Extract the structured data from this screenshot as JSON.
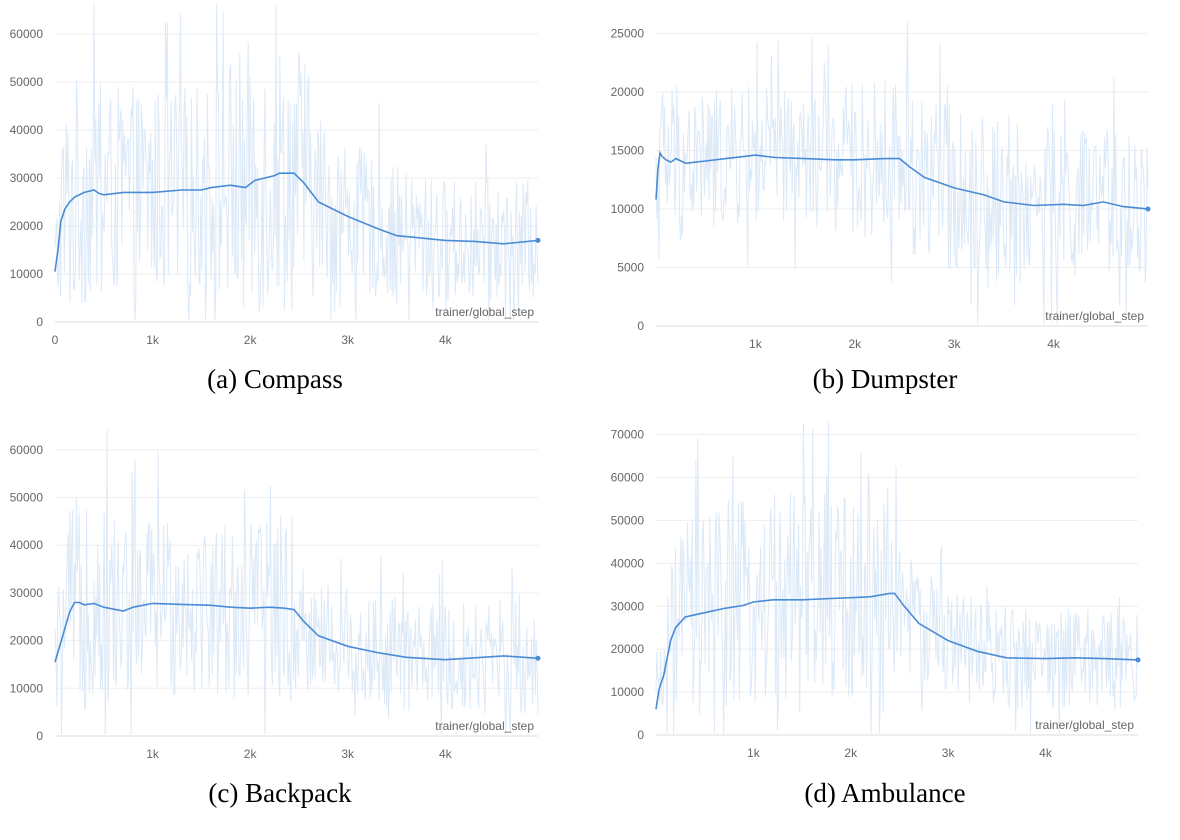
{
  "chart_data": [
    {
      "type": "line",
      "caption": "(a) Compass",
      "xlabel": "trainer/global_step",
      "ylabel": "",
      "xlim": [
        0,
        4950
      ],
      "ylim": [
        0,
        65000
      ],
      "yticks": [
        0,
        10000,
        20000,
        30000,
        40000,
        50000,
        60000
      ],
      "ytick_labels": [
        "0",
        "10000",
        "20000",
        "30000",
        "40000",
        "50000",
        "60000"
      ],
      "xticks": [
        0,
        1000,
        2000,
        3000,
        4000
      ],
      "xtick_labels": [
        "0",
        "1k",
        "2k",
        "3k",
        "4k"
      ],
      "colors": {
        "smoothed": "#4a8bd6",
        "raw": "#dce9f7",
        "grid": "#eeeeee"
      },
      "series": [
        {
          "name": "smoothed",
          "x": [
            0,
            30,
            60,
            100,
            150,
            200,
            300,
            400,
            450,
            500,
            700,
            1000,
            1300,
            1500,
            1600,
            1800,
            1950,
            2050,
            2250,
            2300,
            2450,
            2550,
            2700,
            3000,
            3300,
            3500,
            4000,
            4300,
            4600,
            4950
          ],
          "y": [
            10500,
            15000,
            21000,
            23500,
            25000,
            26000,
            27000,
            27500,
            26800,
            26500,
            27000,
            27000,
            27500,
            27500,
            28000,
            28500,
            28000,
            29500,
            30500,
            31000,
            31000,
            29000,
            25000,
            22000,
            19500,
            18000,
            17000,
            16800,
            16300,
            17000
          ]
        },
        {
          "name": "raw",
          "spread": [
            [
              0,
              12000
            ],
            [
              150,
              26000
            ],
            [
              500,
              22000
            ],
            [
              1500,
              22000
            ],
            [
              1950,
              30000
            ],
            [
              2250,
              28000
            ],
            [
              2500,
              30000
            ],
            [
              2700,
              18000
            ],
            [
              3200,
              15000
            ],
            [
              4000,
              13000
            ],
            [
              4950,
              13000
            ]
          ]
        }
      ]
    },
    {
      "type": "line",
      "caption": "(b) Dumpster",
      "xlabel": "trainer/global_step",
      "ylabel": "",
      "xlim": [
        0,
        4950
      ],
      "ylim": [
        0,
        27000
      ],
      "yticks": [
        0,
        5000,
        10000,
        15000,
        20000,
        25000
      ],
      "ytick_labels": [
        "0",
        "5000",
        "10000",
        "15000",
        "20000",
        "25000"
      ],
      "xticks": [
        1000,
        2000,
        3000,
        4000
      ],
      "xtick_labels": [
        "1k",
        "2k",
        "3k",
        "4k"
      ],
      "colors": {
        "smoothed": "#4a8bd6",
        "raw": "#dce9f7",
        "grid": "#eeeeee"
      },
      "series": [
        {
          "name": "smoothed",
          "x": [
            0,
            20,
            40,
            60,
            100,
            150,
            200,
            300,
            400,
            500,
            700,
            900,
            1000,
            1200,
            1500,
            1800,
            2000,
            2300,
            2450,
            2550,
            2700,
            3000,
            3300,
            3500,
            3800,
            4100,
            4300,
            4500,
            4700,
            4950
          ],
          "y": [
            10800,
            13500,
            14800,
            14500,
            14200,
            14000,
            14300,
            13900,
            14000,
            14100,
            14300,
            14500,
            14600,
            14400,
            14300,
            14200,
            14200,
            14300,
            14300,
            13600,
            12700,
            11800,
            11200,
            10600,
            10300,
            10400,
            10300,
            10600,
            10200,
            10000
          ]
        },
        {
          "name": "raw",
          "spread": [
            [
              0,
              4000
            ],
            [
              100,
              8000
            ],
            [
              500,
              6000
            ],
            [
              1500,
              6000
            ],
            [
              2400,
              7000
            ],
            [
              2600,
              8000
            ],
            [
              3000,
              7000
            ],
            [
              4000,
              7000
            ],
            [
              4950,
              6000
            ]
          ]
        }
      ]
    },
    {
      "type": "line",
      "caption": "(c) Backpack",
      "xlabel": "trainer/global_step",
      "ylabel": "",
      "xlim": [
        0,
        4950
      ],
      "ylim": [
        0,
        65000
      ],
      "yticks": [
        0,
        10000,
        20000,
        30000,
        40000,
        50000,
        60000
      ],
      "ytick_labels": [
        "0",
        "10000",
        "20000",
        "30000",
        "40000",
        "50000",
        "60000"
      ],
      "xticks": [
        1000,
        2000,
        3000,
        4000
      ],
      "xtick_labels": [
        "1k",
        "2k",
        "3k",
        "4k"
      ],
      "colors": {
        "smoothed": "#4a8bd6",
        "raw": "#dce9f7",
        "grid": "#eeeeee"
      },
      "series": [
        {
          "name": "smoothed",
          "x": [
            0,
            50,
            100,
            150,
            200,
            250,
            300,
            400,
            500,
            700,
            800,
            1000,
            1300,
            1600,
            1800,
            2000,
            2200,
            2350,
            2450,
            2550,
            2700,
            3000,
            3300,
            3600,
            4000,
            4300,
            4600,
            4950
          ],
          "y": [
            15500,
            19000,
            22500,
            26000,
            28000,
            28000,
            27500,
            27800,
            27000,
            26200,
            27000,
            27800,
            27600,
            27400,
            27000,
            26800,
            27000,
            26800,
            26500,
            24000,
            21000,
            18800,
            17500,
            16500,
            16000,
            16400,
            16800,
            16300
          ]
        },
        {
          "name": "raw",
          "spread": [
            [
              0,
              12000
            ],
            [
              150,
              22000
            ],
            [
              500,
              22000
            ],
            [
              1500,
              18000
            ],
            [
              2000,
              20000
            ],
            [
              2450,
              20000
            ],
            [
              2550,
              12000
            ],
            [
              3000,
              13000
            ],
            [
              4000,
              12000
            ],
            [
              4950,
              12000
            ]
          ]
        }
      ]
    },
    {
      "type": "line",
      "caption": "(d) Ambulance",
      "xlabel": "trainer/global_step",
      "ylabel": "",
      "xlim": [
        0,
        4950
      ],
      "ylim": [
        0,
        72000
      ],
      "yticks": [
        0,
        10000,
        20000,
        30000,
        40000,
        50000,
        60000,
        70000
      ],
      "ytick_labels": [
        "0",
        "10000",
        "20000",
        "30000",
        "40000",
        "50000",
        "60000",
        "70000"
      ],
      "xticks": [
        1000,
        2000,
        3000,
        4000
      ],
      "xtick_labels": [
        "1k",
        "2k",
        "3k",
        "4k"
      ],
      "colors": {
        "smoothed": "#4a8bd6",
        "raw": "#dce9f7",
        "grid": "#eeeeee"
      },
      "series": [
        {
          "name": "smoothed",
          "x": [
            0,
            30,
            80,
            150,
            200,
            300,
            400,
            500,
            700,
            900,
            1000,
            1200,
            1500,
            1800,
            2000,
            2200,
            2400,
            2450,
            2550,
            2700,
            3000,
            3300,
            3600,
            4000,
            4300,
            4600,
            4950
          ],
          "y": [
            6000,
            10500,
            14000,
            22000,
            25000,
            27500,
            28000,
            28500,
            29500,
            30200,
            31000,
            31500,
            31500,
            31800,
            32000,
            32200,
            33000,
            33000,
            30000,
            26000,
            22000,
            19500,
            18000,
            17800,
            18000,
            17800,
            17500
          ]
        },
        {
          "name": "raw",
          "spread": [
            [
              0,
              6000
            ],
            [
              200,
              20000
            ],
            [
              500,
              25000
            ],
            [
              1500,
              25000
            ],
            [
              2400,
              28000
            ],
            [
              2550,
              14000
            ],
            [
              3000,
              13000
            ],
            [
              4000,
              12000
            ],
            [
              4950,
              12000
            ]
          ]
        }
      ]
    }
  ]
}
